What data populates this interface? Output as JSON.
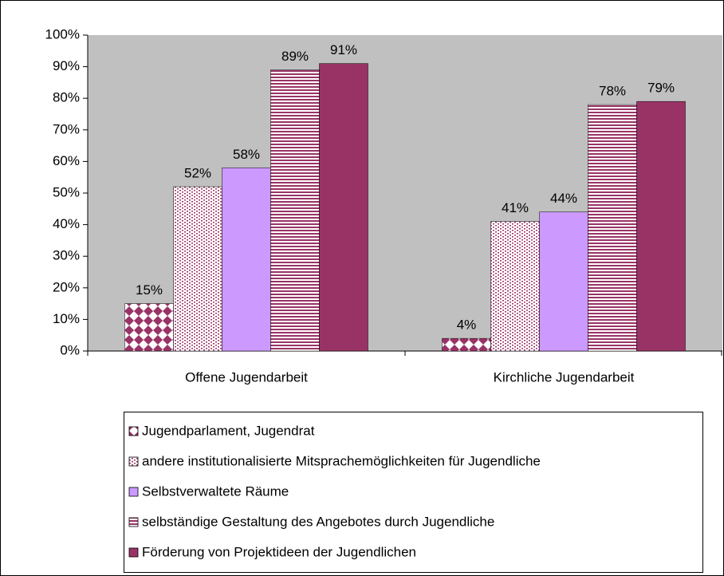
{
  "chart_data": {
    "type": "bar",
    "categories": [
      "Offene Jugendarbeit",
      "Kirchliche Jugendarbeit"
    ],
    "series": [
      {
        "name": "Jugendparlament, Jugendrat",
        "color": "#993366",
        "values": [
          15,
          4
        ],
        "value_labels": [
          "15%",
          "4%"
        ]
      },
      {
        "name": "andere institutionalisierte Mitsprachemöglichkeiten für Jugendliche",
        "color": "#993366",
        "values": [
          52,
          41
        ],
        "value_labels": [
          "52%",
          "41%"
        ]
      },
      {
        "name": "Selbstverwaltete Räume",
        "color": "#cc99ff",
        "values": [
          58,
          44
        ],
        "value_labels": [
          "58%",
          "44%"
        ]
      },
      {
        "name": "selbständige Gestaltung des Angebotes durch Jugendliche",
        "color": "#993366",
        "values": [
          89,
          78
        ],
        "value_labels": [
          "89%",
          "78%"
        ]
      },
      {
        "name": "Förderung von Projektideen der Jugendlichen",
        "color": "#993366",
        "values": [
          91,
          79
        ],
        "value_labels": [
          "91%",
          "79%"
        ]
      }
    ],
    "ylim": [
      0,
      100
    ],
    "yticks": [
      {
        "value": 0,
        "label": "0%"
      },
      {
        "value": 10,
        "label": "10%"
      },
      {
        "value": 20,
        "label": "20%"
      },
      {
        "value": 30,
        "label": "30%"
      },
      {
        "value": 40,
        "label": "40%"
      },
      {
        "value": 50,
        "label": "50%"
      },
      {
        "value": 60,
        "label": "60%"
      },
      {
        "value": 70,
        "label": "70%"
      },
      {
        "value": 80,
        "label": "80%"
      },
      {
        "value": 90,
        "label": "90%"
      },
      {
        "value": 100,
        "label": "100%"
      }
    ],
    "grid": false,
    "legend": "bottom"
  }
}
